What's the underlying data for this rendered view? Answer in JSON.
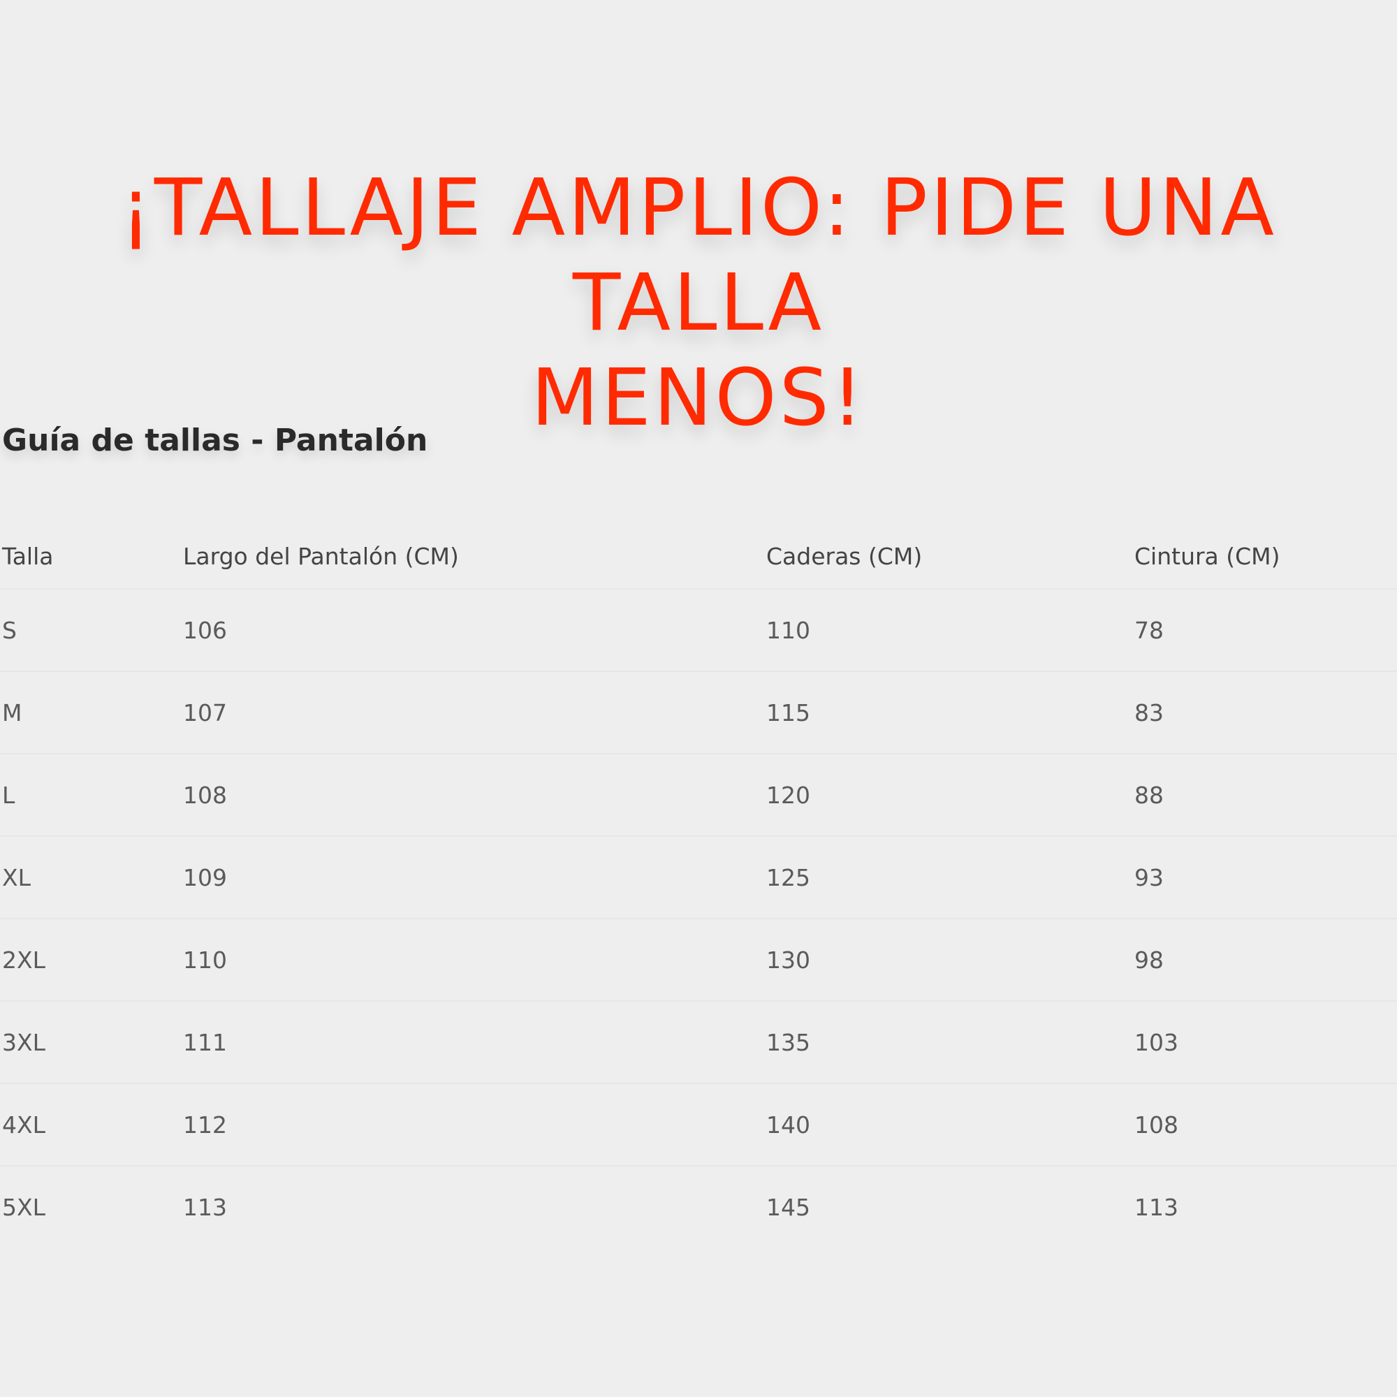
{
  "banner": {
    "line1": "¡TALLAJE AMPLIO: PIDE UNA TALLA",
    "line2": "MENOS!",
    "color": "#ff2a00"
  },
  "heading": "Guía de tallas - Pantalón",
  "table": {
    "headers": [
      "Talla",
      "Largo del Pantalón (CM)",
      "Caderas (CM)",
      "Cintura (CM)"
    ],
    "rows": [
      [
        "S",
        "106",
        "110",
        "78"
      ],
      [
        "M",
        "107",
        "115",
        "83"
      ],
      [
        "L",
        "108",
        "120",
        "88"
      ],
      [
        "XL",
        "109",
        "125",
        "93"
      ],
      [
        "2XL",
        "110",
        "130",
        "98"
      ],
      [
        "3XL",
        "111",
        "135",
        "103"
      ],
      [
        "4XL",
        "112",
        "140",
        "108"
      ],
      [
        "5XL",
        "113",
        "145",
        "113"
      ]
    ]
  }
}
